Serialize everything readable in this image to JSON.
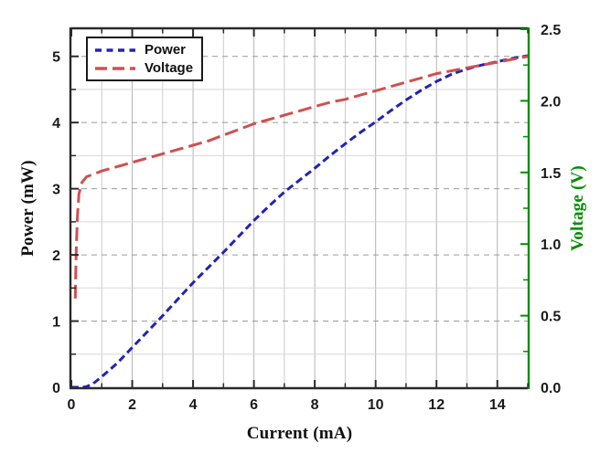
{
  "chart_data": {
    "type": "line",
    "title": "",
    "xlabel": "Current (mA)",
    "ylabel_left": "Power (mW)",
    "ylabel_right": "Voltage (V)",
    "x_range": [
      0,
      15
    ],
    "y_left_range": [
      0,
      5.41
    ],
    "y_right_range": [
      0,
      2.5
    ],
    "x_major_ticks": [
      0,
      2,
      4,
      6,
      8,
      10,
      12,
      14
    ],
    "x_major_tick_labels": [
      "0",
      "2",
      "4",
      "6",
      "8",
      "10",
      "12",
      "14"
    ],
    "x_minor_step": 1,
    "y_left_major_ticks": [
      0,
      1,
      2,
      3,
      4,
      5
    ],
    "y_left_major_tick_labels": [
      "0",
      "1",
      "2",
      "3",
      "4",
      "5"
    ],
    "y_left_minor_step": 0.5,
    "y_right_major_ticks": [
      0.0,
      0.5,
      1.0,
      1.5,
      2.0,
      2.5
    ],
    "y_right_major_tick_labels": [
      "0.0",
      "0.5",
      "1.0",
      "1.5",
      "2.0",
      "2.5"
    ],
    "y_right_minor_step": 0.25,
    "grid": {
      "vertical": "solid every 1 mA",
      "horizontal_major": "dashed at integer mW",
      "horizontal_minor": "solid at half-integer mW"
    },
    "legend": {
      "position": "top-left",
      "entries": [
        "Power",
        "Voltage"
      ]
    },
    "series": [
      {
        "name": "Power",
        "axis": "left",
        "color": "#2323b3",
        "dash_style": "short-dash",
        "points": [
          [
            0,
            0
          ],
          [
            0.35,
            0
          ],
          [
            0.5,
            0.01
          ],
          [
            0.7,
            0.05
          ],
          [
            1,
            0.16
          ],
          [
            1.5,
            0.36
          ],
          [
            2,
            0.6
          ],
          [
            2.5,
            0.84
          ],
          [
            3,
            1.08
          ],
          [
            3.5,
            1.33
          ],
          [
            4,
            1.58
          ],
          [
            4.5,
            1.81
          ],
          [
            5,
            2.04
          ],
          [
            5.5,
            2.28
          ],
          [
            6,
            2.52
          ],
          [
            6.5,
            2.74
          ],
          [
            7,
            2.95
          ],
          [
            7.5,
            3.13
          ],
          [
            8,
            3.31
          ],
          [
            8.5,
            3.5
          ],
          [
            9,
            3.68
          ],
          [
            9.5,
            3.85
          ],
          [
            10,
            4.01
          ],
          [
            10.5,
            4.18
          ],
          [
            11,
            4.34
          ],
          [
            11.5,
            4.49
          ],
          [
            12,
            4.62
          ],
          [
            12.5,
            4.73
          ],
          [
            13,
            4.81
          ],
          [
            13.5,
            4.87
          ],
          [
            14,
            4.92
          ],
          [
            14.5,
            4.97
          ],
          [
            15,
            5.01
          ]
        ]
      },
      {
        "name": "Voltage",
        "axis": "right",
        "color": "#d05050",
        "dash_style": "long-dash",
        "points": [
          [
            0.13,
            0.62
          ],
          [
            0.16,
            0.95
          ],
          [
            0.2,
            1.2
          ],
          [
            0.25,
            1.35
          ],
          [
            0.35,
            1.43
          ],
          [
            0.5,
            1.47
          ],
          [
            0.75,
            1.49
          ],
          [
            1,
            1.51
          ],
          [
            1.5,
            1.54
          ],
          [
            2,
            1.57
          ],
          [
            2.5,
            1.6
          ],
          [
            3,
            1.63
          ],
          [
            3.5,
            1.66
          ],
          [
            4,
            1.69
          ],
          [
            4.5,
            1.72
          ],
          [
            5,
            1.76
          ],
          [
            5.5,
            1.8
          ],
          [
            6,
            1.84
          ],
          [
            6.5,
            1.87
          ],
          [
            7,
            1.9
          ],
          [
            7.5,
            1.93
          ],
          [
            8,
            1.96
          ],
          [
            8.5,
            1.99
          ],
          [
            9,
            2.01
          ],
          [
            9.5,
            2.04
          ],
          [
            10,
            2.07
          ],
          [
            10.5,
            2.1
          ],
          [
            11,
            2.13
          ],
          [
            11.5,
            2.16
          ],
          [
            12,
            2.19
          ],
          [
            12.5,
            2.21
          ],
          [
            13,
            2.23
          ],
          [
            13.5,
            2.25
          ],
          [
            14,
            2.27
          ],
          [
            14.5,
            2.29
          ],
          [
            15,
            2.31
          ]
        ]
      }
    ]
  },
  "colors": {
    "spine_black": "#2a2a2a",
    "right_axis_green": "#008f00",
    "grid_vertical_major": "#b5b5b5",
    "grid_vertical_minor": "#cbcbcb",
    "grid_horizontal_dashed": "#9a9a9a",
    "grid_horizontal_minor": "#d7d7d7",
    "tick_label_black": "#1a1a1a",
    "background": "#ffffff"
  }
}
